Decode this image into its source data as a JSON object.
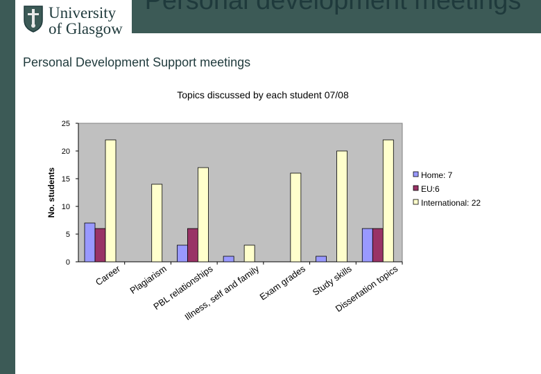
{
  "header": {
    "logo_line1": "University",
    "logo_line2": "of Glasgow",
    "title": "Personal development meetings",
    "subtitle": "Personal Development Support meetings"
  },
  "colors": {
    "brand_dark": "#3c5a56",
    "plot_bg": "#c0c0c0",
    "home": "#9999ff",
    "eu": "#993366",
    "international": "#ffffcc"
  },
  "chart_data": {
    "type": "bar",
    "title": "Topics discussed by each student 07/08",
    "xlabel": "",
    "ylabel": "No. students",
    "ylim": [
      0,
      25
    ],
    "yticks": [
      0,
      5,
      10,
      15,
      20,
      25
    ],
    "grid": false,
    "legend_position": "right",
    "categories": [
      "Career",
      "Plagiarism",
      "PBL relationships",
      "Illness, self and family",
      "Exam grades",
      "Study skills",
      "Dissertation topics"
    ],
    "series": [
      {
        "name": "Home: 7",
        "color": "#9999ff",
        "values": [
          7,
          0,
          3,
          1,
          0,
          1,
          6
        ]
      },
      {
        "name": "EU:6",
        "color": "#993366",
        "values": [
          6,
          0,
          6,
          0,
          0,
          0,
          6
        ]
      },
      {
        "name": "International: 22",
        "color": "#ffffcc",
        "values": [
          22,
          14,
          17,
          3,
          16,
          20,
          22
        ]
      }
    ]
  }
}
